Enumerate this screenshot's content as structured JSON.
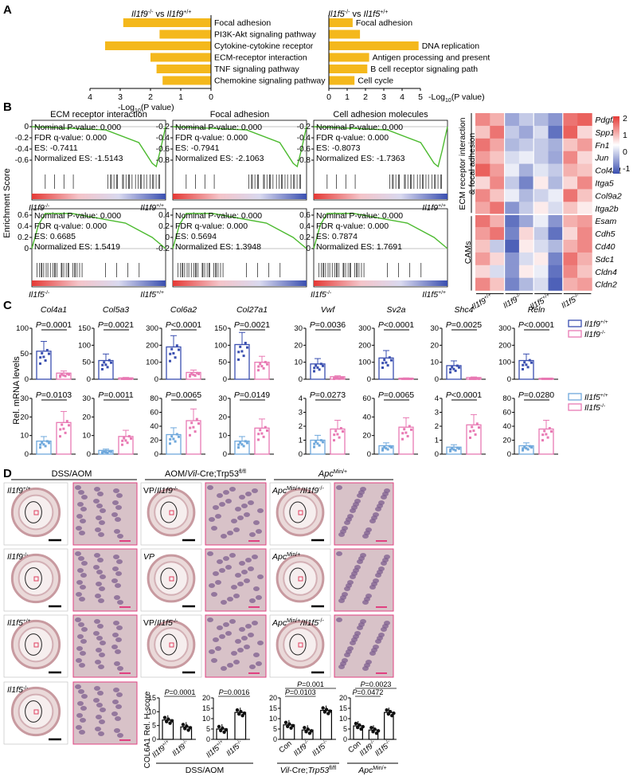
{
  "panels": {
    "A": "A",
    "B": "B",
    "C": "C",
    "D": "D"
  },
  "colors": {
    "bar": "#f4b81c",
    "green": "#4cba2f",
    "red": "#e53935",
    "blue": "#3a4fb0",
    "wt_pink": "#e879b3",
    "ko_blue": "#6fa8dc",
    "ihc_bg": "#d8c2c8",
    "ihc_cell": "#7e5d8f"
  },
  "panel_a": {
    "left": {
      "title_ko": "Il1f9",
      "title_ko_sup": "-/-",
      "title_vs": "vs",
      "title_wt": "Il1f9",
      "title_wt_sup": "+/+",
      "terms": [
        "Focal adhesion",
        "PI3K-Akt signaling pathway",
        "Cytokine-cytokine receptor",
        "ECM-receptor interaction",
        "TNF signaling pathway",
        "Chemokine signaling pathway"
      ],
      "values": [
        2.9,
        1.7,
        3.5,
        2.0,
        1.8,
        1.6
      ],
      "ticks": [
        "4",
        "3",
        "2",
        "1",
        "0"
      ],
      "xlabel": "-Log",
      "xlabel_sub": "10",
      "xlabel_tail": "(P value)"
    },
    "right": {
      "title_ko": "Il1f5",
      "title_ko_sup": "-/-",
      "title_vs": "vs",
      "title_wt": "Il1f5",
      "title_wt_sup": "+/+",
      "terms": [
        "Focal adhesion",
        "",
        "DNA replication",
        "Antigen processing and present",
        "B cell receptor signaling path",
        "Cell cycle"
      ],
      "values": [
        1.3,
        1.7,
        4.9,
        2.2,
        2.1,
        1.4
      ],
      "ticks": [
        "0",
        "1",
        "2",
        "3",
        "4",
        "5"
      ],
      "xlabel": "-Log",
      "xlabel_sub": "10",
      "xlabel_tail": "(P value)"
    }
  },
  "panel_b": {
    "ylabel": "Enrichment Score",
    "gsea": [
      {
        "title": "ECM receptor interaction",
        "lines": [
          "Nominal P-value: 0.000",
          "FDR q-value: 0.000",
          "ES: -0.7411",
          "Normalized ES: -1.5143"
        ],
        "yticks": [
          "0",
          "-0.2",
          "-0.4",
          "-0.6"
        ],
        "left": "Il1f9",
        "left_sup": "-/-",
        "right": "Il1f9",
        "right_sup": "+/+",
        "neg": true
      },
      {
        "title": "Focal adhesion",
        "lines": [
          "Nominal P-value: 0.000",
          "FDR q-value: 0.000",
          "ES: -0.7941",
          "Normalized ES: -2.1063"
        ],
        "yticks": [
          "-0.2",
          "-0.4",
          "-0.6",
          "-0.8"
        ],
        "neg": true
      },
      {
        "title": "Cell adhesion molecules",
        "lines": [
          "Nominal P-value: 0.000",
          "FDR q-value: 0.000",
          "ES: -0.8073",
          "Normalized ES: -1.7363"
        ],
        "yticks": [
          "-0.2",
          "-0.4",
          "-0.6",
          "-0.8"
        ],
        "right": "Il1f9",
        "right_sup": "+/+",
        "neg": true
      },
      {
        "title": "",
        "lines": [
          "Nominal P-value: 0.000",
          "FDR q-value: 0.000",
          "ES: 0.6685",
          "Normalized ES: 1.5419"
        ],
        "yticks": [
          "0.6",
          "0.4",
          "0.2",
          "0"
        ],
        "left": "Il1f5",
        "left_sup": "-/-",
        "right": "Il1f5",
        "right_sup": "+/+",
        "neg": false
      },
      {
        "title": "",
        "lines": [
          "Nominal P-value: 0.000",
          "FDR q-value: 0.000",
          "ES: 0.5694",
          "Normalized ES: 1.3948"
        ],
        "yticks": [
          "0.4",
          "0.2",
          "0",
          "-0.2"
        ],
        "neg": false
      },
      {
        "title": "",
        "lines": [
          "Nominal P-value: 0.000",
          "FDR q-value: 0.000",
          "ES: 0.7874",
          "Normalized ES: 1.7691"
        ],
        "yticks": [
          "0.6",
          "0.4",
          "0.2",
          "0"
        ],
        "left": "Il1f5",
        "left_sup": "-/-",
        "right": "Il1f5",
        "right_sup": "+/+",
        "neg": false
      }
    ],
    "heatmap": {
      "genes": [
        "Pdgfb",
        "Spp1",
        "Fn1",
        "Jun",
        "Col4a1",
        "Itga5",
        "Col9a2",
        "Itga2b",
        "Esam",
        "Cdh5",
        "Cd40",
        "Sdc1",
        "Cldn4",
        "Cldn2"
      ],
      "groups": [
        {
          "name": "Il1f9",
          "sup": "+/+"
        },
        {
          "name": "Il1f9",
          "sup": "-/-"
        },
        {
          "name": "Il1f5",
          "sup": "+/+"
        },
        {
          "name": "Il1f5",
          "sup": "-/-"
        }
      ],
      "side_top": "ECM receptor interaction",
      "side_top2": "& focal adhesion",
      "side_bottom": "CAMs",
      "scale": [
        "2",
        "1",
        "0",
        "-1"
      ],
      "values": [
        [
          1.2,
          0.8,
          -1.0,
          -0.6,
          -0.8,
          -1.2,
          1.4,
          1.6
        ],
        [
          0.6,
          1.4,
          -0.6,
          -1.0,
          -0.4,
          -1.6,
          1.6,
          0.4
        ],
        [
          1.4,
          0.9,
          -0.8,
          -0.6,
          -0.6,
          -0.9,
          0.6,
          1.0
        ],
        [
          1.0,
          0.6,
          -0.4,
          -0.2,
          -0.6,
          -1.0,
          1.2,
          0.4
        ],
        [
          1.6,
          1.0,
          -0.2,
          -0.9,
          -0.3,
          -0.6,
          0.8,
          0.6
        ],
        [
          0.4,
          1.2,
          -0.6,
          -1.4,
          0.2,
          -0.8,
          0.4,
          1.2
        ],
        [
          1.2,
          0.6,
          -0.2,
          -0.8,
          -0.5,
          -0.2,
          1.4,
          0.6
        ],
        [
          0.9,
          1.4,
          -1.2,
          -0.6,
          0.2,
          -0.4,
          0.6,
          0.2
        ],
        [
          1.4,
          0.8,
          -1.6,
          -1.0,
          -0.2,
          -1.2,
          0.8,
          1.0
        ],
        [
          1.0,
          1.4,
          -1.4,
          0.4,
          -0.6,
          -1.6,
          0.4,
          1.2
        ],
        [
          0.6,
          -0.6,
          -1.8,
          0.2,
          -0.4,
          -0.8,
          0.8,
          1.2
        ],
        [
          1.0,
          0.4,
          -1.2,
          -0.4,
          0.2,
          -1.4,
          1.4,
          0.8
        ],
        [
          0.4,
          -0.4,
          -1.2,
          0.2,
          -0.2,
          -1.6,
          1.2,
          0.6
        ],
        [
          1.2,
          0.6,
          -1.4,
          -0.8,
          -0.4,
          -1.8,
          0.8,
          1.0
        ]
      ]
    }
  },
  "panel_c": {
    "ylabel": "Rel. mRNA levels",
    "row1": [
      {
        "gene": "Col4a1",
        "p": "P=0.0001",
        "ymax": "100",
        "ticks": [
          "0",
          "50",
          "100"
        ],
        "wt": 55,
        "ko": 12,
        "max": 100
      },
      {
        "gene": "Col5a3",
        "p": "P=0.0021",
        "ticks": [
          "0",
          "50",
          "100",
          "150"
        ],
        "wt": 55,
        "ko": 4,
        "max": 150
      },
      {
        "gene": "Col6a2",
        "p": "P<0.0001",
        "ticks": [
          "0",
          "100",
          "200",
          "300"
        ],
        "wt": 190,
        "ko": 40,
        "max": 300
      },
      {
        "gene": "Col27a1",
        "p": "P=0.0021",
        "ticks": [
          "0",
          "50",
          "100",
          "150"
        ],
        "wt": 102,
        "ko": 50,
        "max": 150
      },
      {
        "gene": "Vwf",
        "p": "P=0.0036",
        "ticks": [
          "0",
          "10",
          "20",
          "30"
        ],
        "wt": 9,
        "ko": 1.5,
        "max": 30
      },
      {
        "gene": "Sv2a",
        "p": "P<0.0001",
        "ticks": [
          "0",
          "100",
          "200",
          "300"
        ],
        "wt": 125,
        "ko": 6,
        "max": 300
      },
      {
        "gene": "Shc4",
        "p": "P=0.0025",
        "ticks": [
          "0",
          "10",
          "20",
          "30"
        ],
        "wt": 8,
        "ko": 1,
        "max": 30
      },
      {
        "gene": "Reln",
        "p": "P<0.0001",
        "ticks": [
          "0",
          "100",
          "200",
          "300"
        ],
        "wt": 110,
        "ko": 5,
        "max": 300
      }
    ],
    "row2": [
      {
        "p": "P=0.0103",
        "ticks": [
          "0",
          "10",
          "20",
          "30"
        ],
        "wt": 7,
        "ko": 17,
        "max": 30
      },
      {
        "p": "P=0.0011",
        "ticks": [
          "0",
          "10",
          "20",
          "30"
        ],
        "wt": 2,
        "ko": 9.5,
        "max": 30
      },
      {
        "p": "P=0.0065",
        "ticks": [
          "0",
          "20",
          "40",
          "60",
          "80"
        ],
        "wt": 28,
        "ko": 48,
        "max": 80
      },
      {
        "p": "P=0.0149",
        "ticks": [
          "0",
          "10",
          "20",
          "30"
        ],
        "wt": 7,
        "ko": 14,
        "max": 30
      },
      {
        "p": "P=0.0273",
        "ticks": [
          "0",
          "1",
          "2",
          "3",
          "4"
        ],
        "wt": 1,
        "ko": 1.8,
        "max": 4
      },
      {
        "p": "P=0.0065",
        "ticks": [
          "0",
          "20",
          "40",
          "60"
        ],
        "wt": 9,
        "ko": 29,
        "max": 60
      },
      {
        "p": "P<0.0001",
        "ticks": [
          "0",
          "1",
          "2",
          "3",
          "4"
        ],
        "wt": 0.5,
        "ko": 2.1,
        "max": 4
      },
      {
        "p": "P=0.0280",
        "ticks": [
          "0",
          "20",
          "40",
          "60",
          "80"
        ],
        "wt": 12,
        "ko": 36,
        "max": 80
      }
    ],
    "legend1": [
      {
        "name": "Il1f9",
        "sup": "+/+"
      },
      {
        "name": "Il1f9",
        "sup": "-/-"
      }
    ],
    "legend2": [
      {
        "name": "Il1f5",
        "sup": "+/+"
      },
      {
        "name": "Il1f5",
        "sup": "-/-"
      }
    ]
  },
  "panel_d": {
    "headers": [
      {
        "text": "DSS/AOM"
      },
      {
        "text": "AOM/",
        "it": "Vil",
        "tail": "-Cre;Trp53",
        "sup": "fl/fl"
      },
      {
        "text": "",
        "it": "Apc",
        "sup": "Min/+"
      }
    ],
    "labels_c1": [
      {
        "it": "Il1f9",
        "sup": "+/+"
      },
      {
        "it": "Il1f9",
        "sup": "-/-"
      },
      {
        "it": "Il1f5",
        "sup": "+/+"
      },
      {
        "it": "Il1f5",
        "sup": "-/-"
      }
    ],
    "labels_c2": [
      {
        "pre": "VP/",
        "it": "Il1f9",
        "sup": "-/-"
      },
      {
        "pre": "",
        "it": "VP",
        "sup": ""
      },
      {
        "pre": "VP/",
        "it": "Il1f5",
        "sup": "-/-"
      }
    ],
    "labels_c3": [
      {
        "it": "Apc",
        "sup": "Min/+",
        "tail": "/Il1f9",
        "tsup": "-/-"
      },
      {
        "it": "Apc",
        "sup": "Min/+",
        "tail": "",
        "tsup": ""
      },
      {
        "it": "Apc",
        "sup": "Min/+",
        "tail": "/Il1f5",
        "tsup": "-/-"
      }
    ],
    "ylabel": "COL6A1 Rel. H-score",
    "plots": [
      {
        "p": [
          "P=0.0001"
        ],
        "cats": [
          "Il1f9+/+",
          "Il1f9-/-"
        ],
        "ticks": [
          "0",
          "5",
          "10",
          "15"
        ],
        "vals": [
          7,
          4.5
        ],
        "max": 15
      },
      {
        "p": [
          "P=0.0016"
        ],
        "cats": [
          "Il1f5+/+",
          "Il1f5-/-"
        ],
        "ticks": [
          "0",
          "5",
          "10",
          "15",
          "20"
        ],
        "vals": [
          5,
          13
        ],
        "max": 20
      },
      {
        "p": [
          "P=0.001",
          "P=0.0103"
        ],
        "cats": [
          "Con",
          "Il1f9-/-",
          "Il1f5-/-"
        ],
        "ticks": [
          "0",
          "5",
          "10",
          "15",
          "20"
        ],
        "vals": [
          7,
          4.5,
          14
        ],
        "max": 20
      },
      {
        "p": [
          "P=0.0023",
          "P=0.0472"
        ],
        "cats": [
          "Con",
          "Il1f9-/-",
          "Il1f5-/-"
        ],
        "ticks": [
          "0",
          "5",
          "10",
          "15",
          "20"
        ],
        "vals": [
          6.5,
          4.5,
          13
        ],
        "max": 20
      }
    ],
    "groups_bottom": [
      {
        "text": "DSS/AOM"
      },
      {
        "it": "Vil",
        "text": "-Cre;",
        "it2": "Trp53",
        "sup": "fl/fl"
      },
      {
        "it": "Apc",
        "sup": "Min/+"
      }
    ]
  }
}
